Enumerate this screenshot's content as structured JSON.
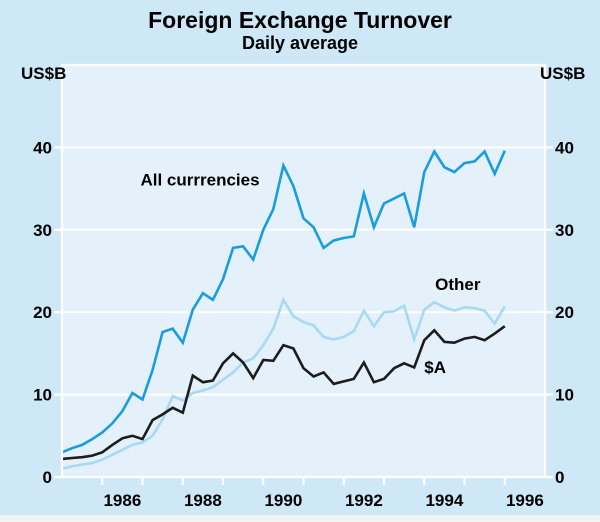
{
  "colors": {
    "page_bg": "#cfe8f7",
    "plot_bg": "#e4f1fb",
    "grid": "#ffffff",
    "footer_strip": "#f2f4f1",
    "text": "#000000",
    "all_currencies_line": "#1a9ce0",
    "other_line": "#a8d9f3",
    "aud_line": "#1c1c1c"
  },
  "chart_data": {
    "type": "line",
    "title": "Foreign Exchange Turnover",
    "subtitle": "Daily average",
    "ylabel_left": "US$B",
    "ylabel_right": "US$B",
    "ylim": [
      0,
      50
    ],
    "yticks": [
      0,
      10,
      20,
      30,
      40
    ],
    "xlim": [
      1985,
      1997
    ],
    "xticks": [
      1986,
      1987,
      1988,
      1989,
      1990,
      1991,
      1992,
      1993,
      1994,
      1995,
      1996
    ],
    "xtick_labels": [
      "1986",
      "1988",
      "1990",
      "1992",
      "1994",
      "1996"
    ],
    "grid": "horizontal-white-gridlines",
    "legend_position": "inline-annotations",
    "x": [
      1985.0,
      1985.25,
      1985.5,
      1985.75,
      1986.0,
      1986.25,
      1986.5,
      1986.75,
      1987.0,
      1987.25,
      1987.5,
      1987.75,
      1988.0,
      1988.25,
      1988.5,
      1988.75,
      1989.0,
      1989.25,
      1989.5,
      1989.75,
      1990.0,
      1990.25,
      1990.5,
      1990.75,
      1991.0,
      1991.25,
      1991.5,
      1991.75,
      1992.0,
      1992.25,
      1992.5,
      1992.75,
      1993.0,
      1993.25,
      1993.5,
      1993.75,
      1994.0,
      1994.25,
      1994.5,
      1994.75,
      1995.0,
      1995.25,
      1995.5,
      1995.75,
      1996.0
    ],
    "series": [
      {
        "name": "Other",
        "color": "#a8d9f3",
        "values": [
          1.0,
          1.3,
          1.5,
          1.7,
          2.1,
          2.7,
          3.3,
          3.9,
          4.2,
          5.0,
          7.0,
          9.8,
          9.3,
          10.2,
          10.5,
          10.9,
          11.8,
          12.7,
          13.9,
          14.4,
          16.0,
          18.0,
          21.5,
          19.5,
          18.8,
          18.4,
          17.0,
          16.7,
          17.0,
          17.7,
          20.2,
          18.3,
          20.0,
          20.1,
          20.8,
          16.7,
          20.3,
          21.2,
          20.6,
          20.2,
          20.6,
          20.5,
          20.2,
          18.6,
          20.7
        ]
      },
      {
        "name": "All currrencies",
        "color": "#1a9ce0",
        "values": [
          3.0,
          3.5,
          3.9,
          4.6,
          5.4,
          6.5,
          8.0,
          10.2,
          9.4,
          13.0,
          17.6,
          18.0,
          16.3,
          20.3,
          22.3,
          21.5,
          24.0,
          27.8,
          28.0,
          26.4,
          30.0,
          32.5,
          37.8,
          35.3,
          31.4,
          30.3,
          27.8,
          28.7,
          29.0,
          29.2,
          34.4,
          30.3,
          33.2,
          33.8,
          34.4,
          30.3,
          37.0,
          39.5,
          37.6,
          37.0,
          38.1,
          38.3,
          39.5,
          36.8,
          39.6
        ]
      },
      {
        "name": "$A",
        "color": "#1c1c1c",
        "values": [
          2.2,
          2.3,
          2.4,
          2.6,
          3.0,
          3.9,
          4.7,
          5.0,
          4.6,
          6.9,
          7.6,
          8.4,
          7.8,
          12.3,
          11.5,
          11.7,
          13.8,
          15.0,
          13.9,
          12.0,
          14.2,
          14.1,
          16.0,
          15.6,
          13.2,
          12.2,
          12.7,
          11.3,
          11.6,
          11.9,
          13.9,
          11.5,
          11.9,
          13.2,
          13.8,
          13.3,
          16.6,
          17.8,
          16.4,
          16.3,
          16.8,
          17.0,
          16.6,
          17.4,
          18.3
        ]
      }
    ],
    "annotations": [
      {
        "text": "All currrencies",
        "x_year": 1986.95,
        "y_value": 35.4
      },
      {
        "text": "Other",
        "x_year": 1994.27,
        "y_value": 22.7
      },
      {
        "text": "$A",
        "x_year": 1994.0,
        "y_value": 12.6
      }
    ]
  }
}
